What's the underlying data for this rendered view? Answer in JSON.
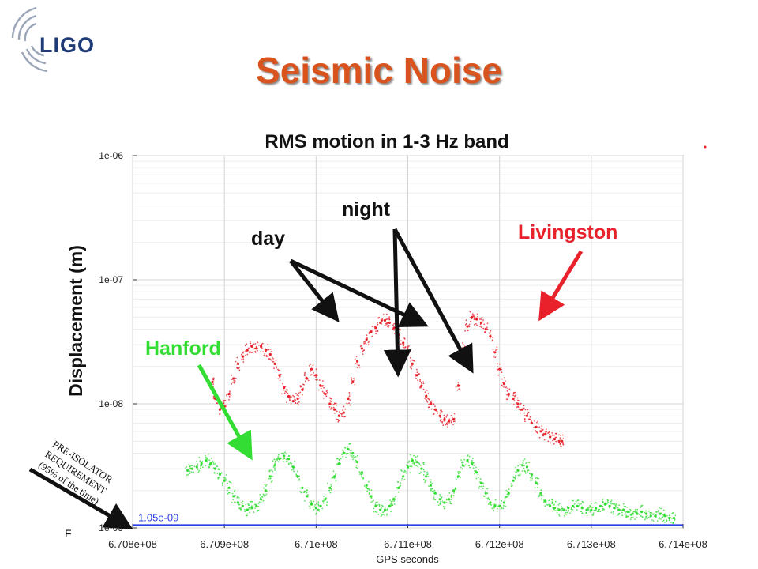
{
  "slide": {
    "title": "Seismic Noise",
    "logo": "LIGO"
  },
  "chart_data": {
    "type": "scatter",
    "title": "RMS motion in 1-3 Hz band",
    "xlabel": "GPS seconds",
    "ylabel": "Displacement (m)",
    "xlim": [
      670800000,
      671400000
    ],
    "ylim": [
      1e-09,
      1e-06
    ],
    "yscale": "log",
    "x_ticks": [
      670800000,
      670900000,
      671000000,
      671100000,
      671200000,
      671300000,
      671400000
    ],
    "x_tick_labels": [
      "6.708e+08",
      "6.709e+08",
      "6.71e+08",
      "6.711e+08",
      "6.712e+08",
      "6.713e+08",
      "6.714e+08"
    ],
    "y_ticks": [
      1e-09,
      1e-08,
      1e-07,
      1e-06
    ],
    "y_tick_labels": [
      "1e-09",
      "1e-08",
      "1e-07",
      "1e-06"
    ],
    "grid": true,
    "series": [
      {
        "name": "Livingston",
        "color": "#e8212b",
        "x": [
          670887000,
          670890000,
          670895000,
          670900000,
          670905000,
          670910000,
          670915000,
          670920000,
          670925000,
          670930000,
          670935000,
          670940000,
          670945000,
          670950000,
          670955000,
          670960000,
          670965000,
          670970000,
          670975000,
          670980000,
          670985000,
          670990000,
          670995000,
          671000000,
          671005000,
          671010000,
          671015000,
          671020000,
          671025000,
          671030000,
          671035000,
          671040000,
          671045000,
          671050000,
          671055000,
          671060000,
          671065000,
          671070000,
          671075000,
          671080000,
          671085000,
          671090000,
          671095000,
          671100000,
          671105000,
          671110000,
          671115000,
          671120000,
          671125000,
          671130000,
          671135000,
          671140000,
          671145000,
          671150000,
          671155000,
          671160000,
          671165000,
          671170000,
          671175000,
          671180000,
          671185000,
          671190000,
          671195000,
          671200000,
          671205000,
          671210000,
          671215000,
          671220000,
          671225000,
          671230000,
          671235000,
          671240000,
          671245000,
          671250000,
          671255000,
          671260000,
          671265000,
          671268000
        ],
        "y": [
          1.5e-08,
          1.1e-08,
          9e-09,
          9.5e-09,
          1.2e-08,
          1.6e-08,
          2.1e-08,
          2.4e-08,
          2.7e-08,
          2.9e-08,
          2.8e-08,
          2.9e-08,
          2.7e-08,
          2.5e-08,
          2.1e-08,
          1.7e-08,
          1.35e-08,
          1.15e-08,
          1.05e-08,
          1.1e-08,
          1.3e-08,
          1.6e-08,
          1.9e-08,
          1.7e-08,
          1.4e-08,
          1.2e-08,
          1e-08,
          9e-09,
          8e-09,
          8.5e-09,
          1.1e-08,
          1.5e-08,
          2.2e-08,
          2.8e-08,
          3.3e-08,
          3.8e-08,
          4.1e-08,
          4.5e-08,
          4.7e-08,
          4.5e-08,
          4.1e-08,
          3.6e-08,
          3.1e-08,
          2.6e-08,
          2.1e-08,
          1.7e-08,
          1.4e-08,
          1.15e-08,
          1e-08,
          9e-09,
          8e-09,
          7.5e-09,
          7.3e-09,
          7.5e-09,
          1.4e-08,
          2.8e-08,
          4.2e-08,
          5e-08,
          4.8e-08,
          4.5e-08,
          4e-08,
          3.5e-08,
          2.6e-08,
          1.9e-08,
          1.45e-08,
          1.2e-08,
          1.1e-08,
          1e-08,
          9e-09,
          8e-09,
          7e-09,
          6.5e-09,
          6e-09,
          5.7e-09,
          5.4e-09,
          5.2e-09,
          5e-09,
          5e-09
        ]
      },
      {
        "name": "Hanford",
        "color": "#33dd33",
        "x": [
          670860000,
          670865000,
          670870000,
          670875000,
          670880000,
          670885000,
          670890000,
          670895000,
          670900000,
          670905000,
          670910000,
          670915000,
          670920000,
          670925000,
          670930000,
          670935000,
          670940000,
          670945000,
          670950000,
          670955000,
          670960000,
          670965000,
          670970000,
          670975000,
          670980000,
          670985000,
          670990000,
          670995000,
          671000000,
          671005000,
          671010000,
          671015000,
          671020000,
          671025000,
          671030000,
          671035000,
          671040000,
          671045000,
          671050000,
          671055000,
          671060000,
          671065000,
          671070000,
          671075000,
          671080000,
          671085000,
          671090000,
          671095000,
          671100000,
          671105000,
          671110000,
          671115000,
          671120000,
          671125000,
          671130000,
          671135000,
          671140000,
          671145000,
          671150000,
          671155000,
          671160000,
          671165000,
          671170000,
          671175000,
          671180000,
          671185000,
          671190000,
          671195000,
          671200000,
          671205000,
          671210000,
          671215000,
          671220000,
          671225000,
          671230000,
          671235000,
          671240000,
          671245000,
          671250000,
          671255000,
          671260000,
          671265000,
          671270000,
          671275000,
          671280000,
          671285000,
          671290000,
          671295000,
          671300000,
          671305000,
          671310000,
          671315000,
          671320000,
          671325000,
          671330000,
          671335000,
          671340000,
          671345000,
          671350000,
          671355000,
          671360000,
          671365000,
          671370000,
          671375000,
          671380000,
          671385000,
          671390000
        ],
        "y": [
          2.9e-09,
          3e-09,
          3.1e-09,
          3.3e-09,
          3.5e-09,
          3.3e-09,
          3e-09,
          2.7e-09,
          2.4e-09,
          2.1e-09,
          1.8e-09,
          1.6e-09,
          1.5e-09,
          1.4e-09,
          1.45e-09,
          1.5e-09,
          1.7e-09,
          2e-09,
          2.6e-09,
          3.2e-09,
          3.6e-09,
          3.8e-09,
          3.6e-09,
          3.1e-09,
          2.6e-09,
          2.1e-09,
          1.8e-09,
          1.55e-09,
          1.45e-09,
          1.5e-09,
          1.7e-09,
          2.1e-09,
          2.6e-09,
          3.3e-09,
          4e-09,
          4.3e-09,
          4e-09,
          3.4e-09,
          2.8e-09,
          2.2e-09,
          1.8e-09,
          1.5e-09,
          1.4e-09,
          1.4e-09,
          1.5e-09,
          1.7e-09,
          2.1e-09,
          2.6e-09,
          3.1e-09,
          3.5e-09,
          3.4e-09,
          3e-09,
          2.6e-09,
          2.2e-09,
          1.9e-09,
          1.7e-09,
          1.6e-09,
          1.7e-09,
          2e-09,
          2.6e-09,
          3.2e-09,
          3.5e-09,
          3.3e-09,
          2.8e-09,
          2.3e-09,
          1.9e-09,
          1.6e-09,
          1.5e-09,
          1.5e-09,
          1.6e-09,
          1.9e-09,
          2.4e-09,
          2.9e-09,
          3.2e-09,
          3.1e-09,
          2.7e-09,
          2.3e-09,
          1.9e-09,
          1.65e-09,
          1.5e-09,
          1.45e-09,
          1.4e-09,
          1.4e-09,
          1.45e-09,
          1.5e-09,
          1.5e-09,
          1.45e-09,
          1.4e-09,
          1.4e-09,
          1.45e-09,
          1.5e-09,
          1.55e-09,
          1.5e-09,
          1.45e-09,
          1.4e-09,
          1.4e-09,
          1.35e-09,
          1.3e-09,
          1.3e-09,
          1.35e-09,
          1.3e-09,
          1.25e-09,
          1.25e-09,
          1.3e-09,
          1.25e-09,
          1.2e-09,
          1.2e-09
        ]
      }
    ],
    "reference_line": {
      "value": 1.05e-09,
      "label": "1.05e-09",
      "color": "#2b3ee8"
    },
    "annotations": {
      "day": "day",
      "night": "night",
      "livingston": "Livingston",
      "hanford": "Hanford",
      "requirement": [
        "PRE-ISOLATOR",
        "REQUIREMENT",
        "(95% of the time)"
      ],
      "stray": "F"
    }
  }
}
